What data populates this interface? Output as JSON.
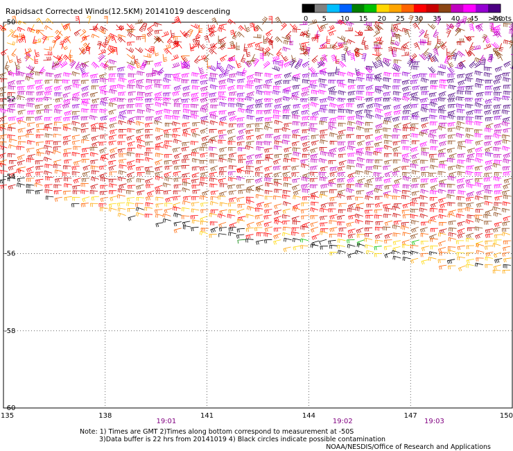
{
  "header": {
    "title": "Rapidsact Corrected Winds(12.5KM) 20141019 descending"
  },
  "legend": {
    "labels": [
      "0",
      "5",
      "10",
      "15",
      "20",
      "25",
      "30",
      "35",
      "40",
      "45",
      ">50"
    ],
    "unit": "knots",
    "colors": [
      "#000000",
      "#808080",
      "#00bfff",
      "#0060ff",
      "#008000",
      "#00c000",
      "#ffd700",
      "#ffa500",
      "#ff6400",
      "#ff0000",
      "#c80000",
      "#8b4513",
      "#c000c0",
      "#ff00ff",
      "#9400d3",
      "#4b0082"
    ]
  },
  "footer": {
    "times": [
      "19:01",
      "19:02",
      "19:03"
    ],
    "time_longitudes": [
      139.8,
      145.0,
      147.7
    ],
    "notes": [
      "Note: 1) Times are GMT 2)Times along bottom correspond to measurement at -50S",
      "3)Data buffer is 22 hrs from 20141019 4) Black circles indicate possible contamination",
      "NOAA/NESDIS/Office of Research and Applications"
    ]
  },
  "chart_data": {
    "type": "wind barb map",
    "x_ticks": [
      "135",
      "138",
      "141",
      "144",
      "147",
      "150"
    ],
    "y_ticks": [
      "-50",
      "-52",
      "-54",
      "-56",
      "-58",
      "-60"
    ],
    "xlim": [
      135,
      150
    ],
    "ylim": [
      -60,
      -50
    ],
    "grid": "dotted",
    "swath_south_edge": [
      [
        135,
        -54.2
      ],
      [
        138,
        -54.9
      ],
      [
        141,
        -55.5
      ],
      [
        144,
        -55.9
      ],
      [
        147,
        -56.2
      ],
      [
        150,
        -56.5
      ]
    ],
    "speed_bands": [
      {
        "lat_range": [
          -50,
          -51
        ],
        "speed_knots": 30,
        "direction": "variable"
      },
      {
        "lat_range": [
          -51,
          -52.5
        ],
        "speed_knots": 42,
        "direction": "westerly"
      },
      {
        "lat_range": [
          -52.5,
          -54.5
        ],
        "speed_knots": 32,
        "direction": "westerly"
      },
      {
        "lat_range": [
          -54.5,
          -55.5
        ],
        "speed_knots": 24,
        "direction": "westerly"
      },
      {
        "lat_range": [
          -55.5,
          -56.5
        ],
        "speed_knots": 15,
        "direction": "westerly"
      }
    ],
    "east_speed_boost_knots": 12
  }
}
